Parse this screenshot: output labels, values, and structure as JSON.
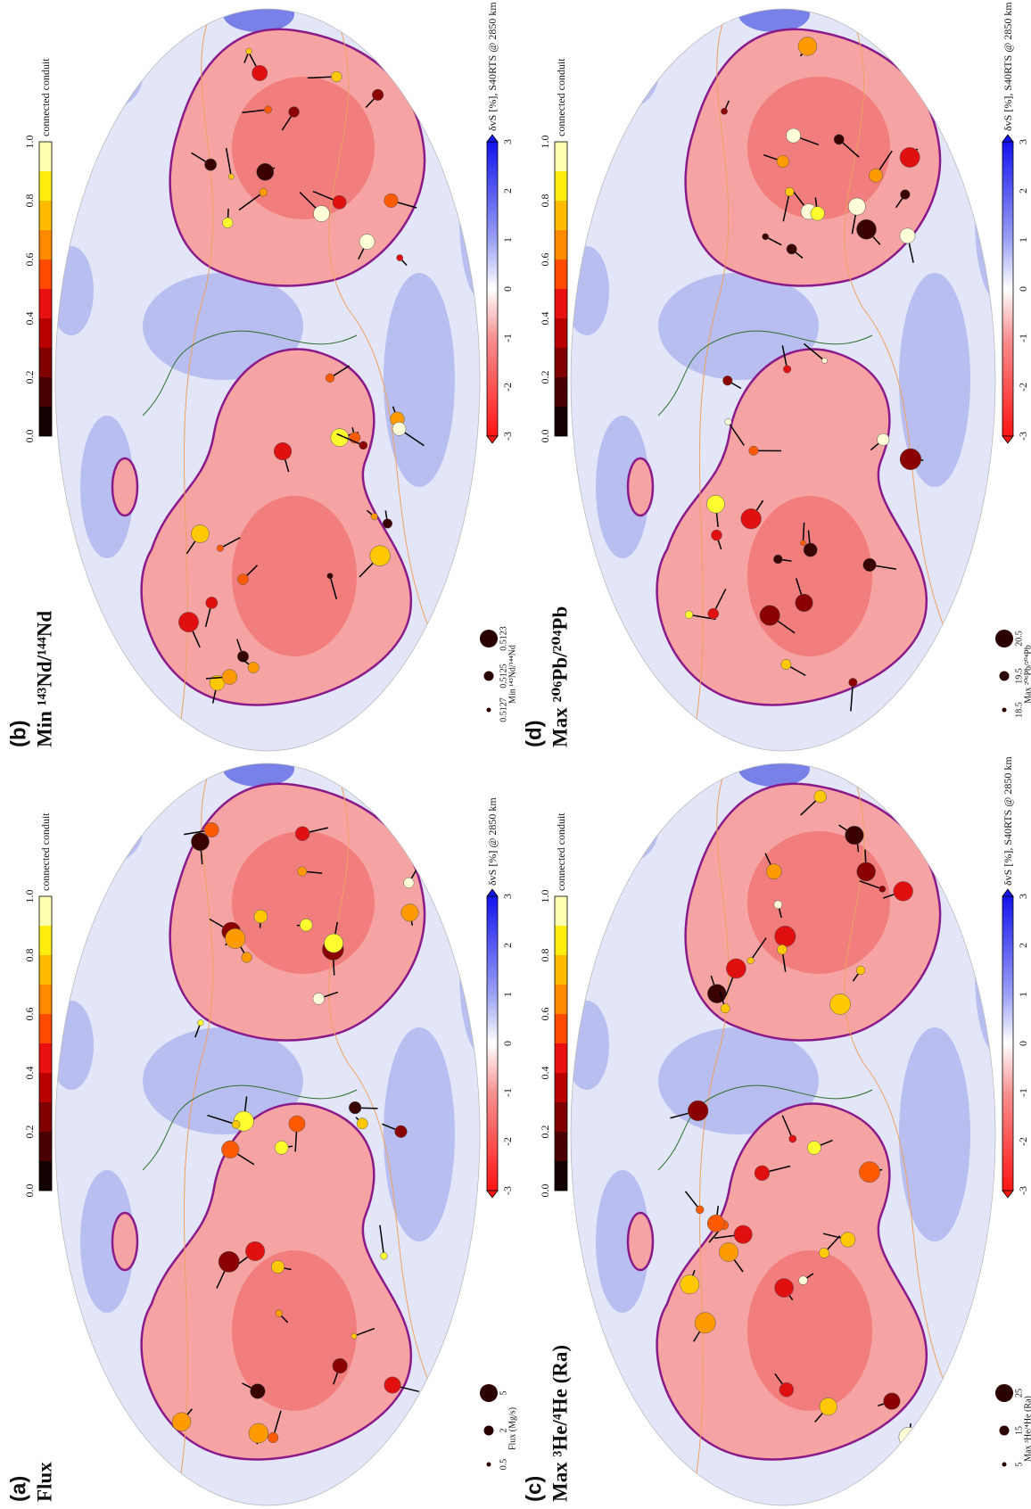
{
  "panels": [
    {
      "label": "(a)",
      "title": "Flux",
      "conduit_colorbar": {
        "ticks": [
          "0.0",
          "0.2",
          "0.4",
          "0.6",
          "0.8",
          "1.0"
        ],
        "label": "connected conduit"
      },
      "velocity_colorbar": {
        "ticks": [
          "-3",
          "-2",
          "-1",
          "0",
          "1",
          "2",
          "3"
        ],
        "label": "δvS [%] @ 2850 km"
      },
      "size_legend": {
        "values": [
          "0.5",
          "2",
          "5"
        ],
        "label": "Flux (Mg/s)"
      }
    },
    {
      "label": "(b)",
      "title": "Min ¹⁴³Nd/¹⁴⁴Nd",
      "conduit_colorbar": {
        "ticks": [
          "0.0",
          "0.2",
          "0.4",
          "0.6",
          "0.8",
          "1.0"
        ],
        "label": "connected conduit"
      },
      "velocity_colorbar": {
        "ticks": [
          "-3",
          "-2",
          "-1",
          "0",
          "1",
          "2",
          "3"
        ],
        "label": "δvS [%], S40RTS @ 2850 km"
      },
      "size_legend": {
        "values": [
          "0.5127",
          "0.5125",
          "0.5123"
        ],
        "label": "Min ¹⁴³Nd/¹⁴⁴Nd"
      }
    },
    {
      "label": "(c)",
      "title": "Max ³He/⁴He (Ra)",
      "conduit_colorbar": {
        "ticks": [
          "0.0",
          "0.2",
          "0.4",
          "0.6",
          "0.8",
          "1.0"
        ],
        "label": "connected conduit"
      },
      "velocity_colorbar": {
        "ticks": [
          "-3",
          "-2",
          "-1",
          "0",
          "1",
          "2",
          "3"
        ],
        "label": "δvS [%], S40RTS @ 2850 km"
      },
      "size_legend": {
        "values": [
          "5",
          "15",
          "25"
        ],
        "label": "Max ³He/⁴He (Ra)"
      }
    },
    {
      "label": "(d)",
      "title": "Max ²⁰⁶Pb/²⁰⁴Pb",
      "conduit_colorbar": {
        "ticks": [
          "0.0",
          "0.2",
          "0.4",
          "0.6",
          "0.8",
          "1.0"
        ],
        "label": "connected conduit"
      },
      "velocity_colorbar": {
        "ticks": [
          "-3",
          "-2",
          "-1",
          "0",
          "1",
          "2",
          "3"
        ],
        "label": "δvS [%], S40RTS @ 2850 km"
      },
      "size_legend": {
        "values": [
          "18.5",
          "19.5",
          "20.5"
        ],
        "label": "Max ²⁰⁶Pb/²⁰⁴Pb"
      }
    }
  ]
}
